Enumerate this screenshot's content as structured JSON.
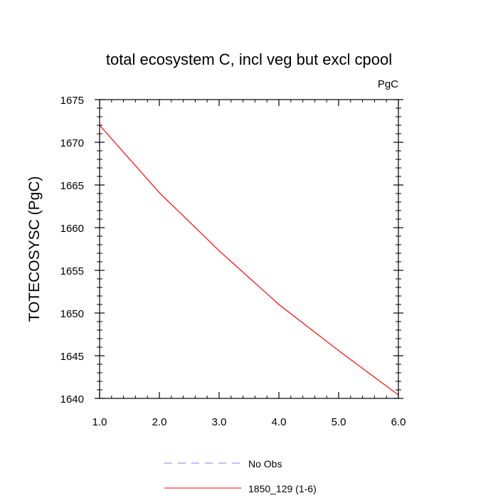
{
  "chart_data": {
    "type": "line",
    "title": "total ecosystem C, incl veg but excl cpool",
    "units_label": "PgC",
    "ylabel": "TOTECOSYSC  (PgC)",
    "xlabel": "",
    "xlim": [
      1.0,
      6.0
    ],
    "ylim": [
      1640,
      1675
    ],
    "x_ticks": [
      1.0,
      2.0,
      3.0,
      4.0,
      5.0,
      6.0
    ],
    "x_tick_labels": [
      "1.0",
      "2.0",
      "3.0",
      "4.0",
      "5.0",
      "6.0"
    ],
    "y_ticks": [
      1640,
      1645,
      1650,
      1655,
      1660,
      1665,
      1670,
      1675
    ],
    "y_tick_labels": [
      "1640",
      "1645",
      "1650",
      "1655",
      "1660",
      "1665",
      "1670",
      "1675"
    ],
    "grid": false,
    "legend_position": "bottom",
    "series": [
      {
        "name": "No Obs",
        "color": "#8080ff",
        "style": "dashed",
        "x": [],
        "y": []
      },
      {
        "name": "1850_129 (1-6)",
        "color": "#ff0000",
        "style": "solid",
        "x": [
          1.0,
          2.0,
          3.0,
          4.0,
          5.0,
          6.0
        ],
        "y": [
          1672.0,
          1664.1,
          1657.3,
          1651.0,
          1645.6,
          1640.4
        ]
      }
    ]
  }
}
